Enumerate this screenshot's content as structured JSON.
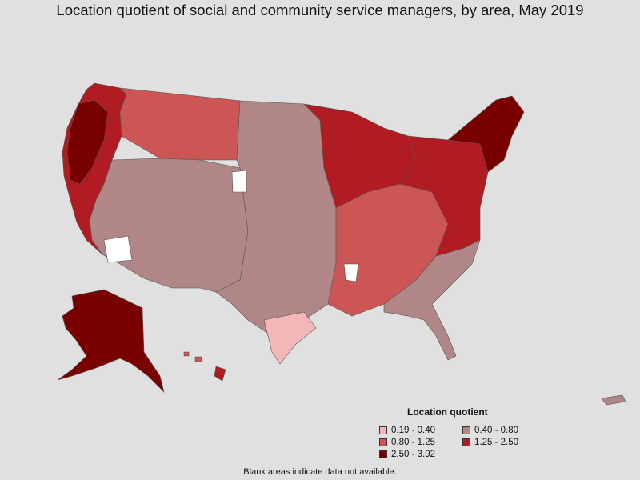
{
  "title": "Location quotient of social and community service managers, by area, May 2019",
  "legend": {
    "title": "Location quotient",
    "items": [
      {
        "label": "0.19 - 0.40",
        "color": "#f4b6b6"
      },
      {
        "label": "0.40 - 0.80",
        "color": "#b08686"
      },
      {
        "label": "0.80 - 1.25",
        "color": "#cc5555"
      },
      {
        "label": "1.25 - 2.50",
        "color": "#b01c22"
      },
      {
        "label": "2.50 - 3.92",
        "color": "#7a0000"
      }
    ]
  },
  "footnote": "Blank areas indicate data not available.",
  "colors": {
    "background": "#e0e0e0",
    "no_data": "#ffffff",
    "border": "#444444"
  }
}
